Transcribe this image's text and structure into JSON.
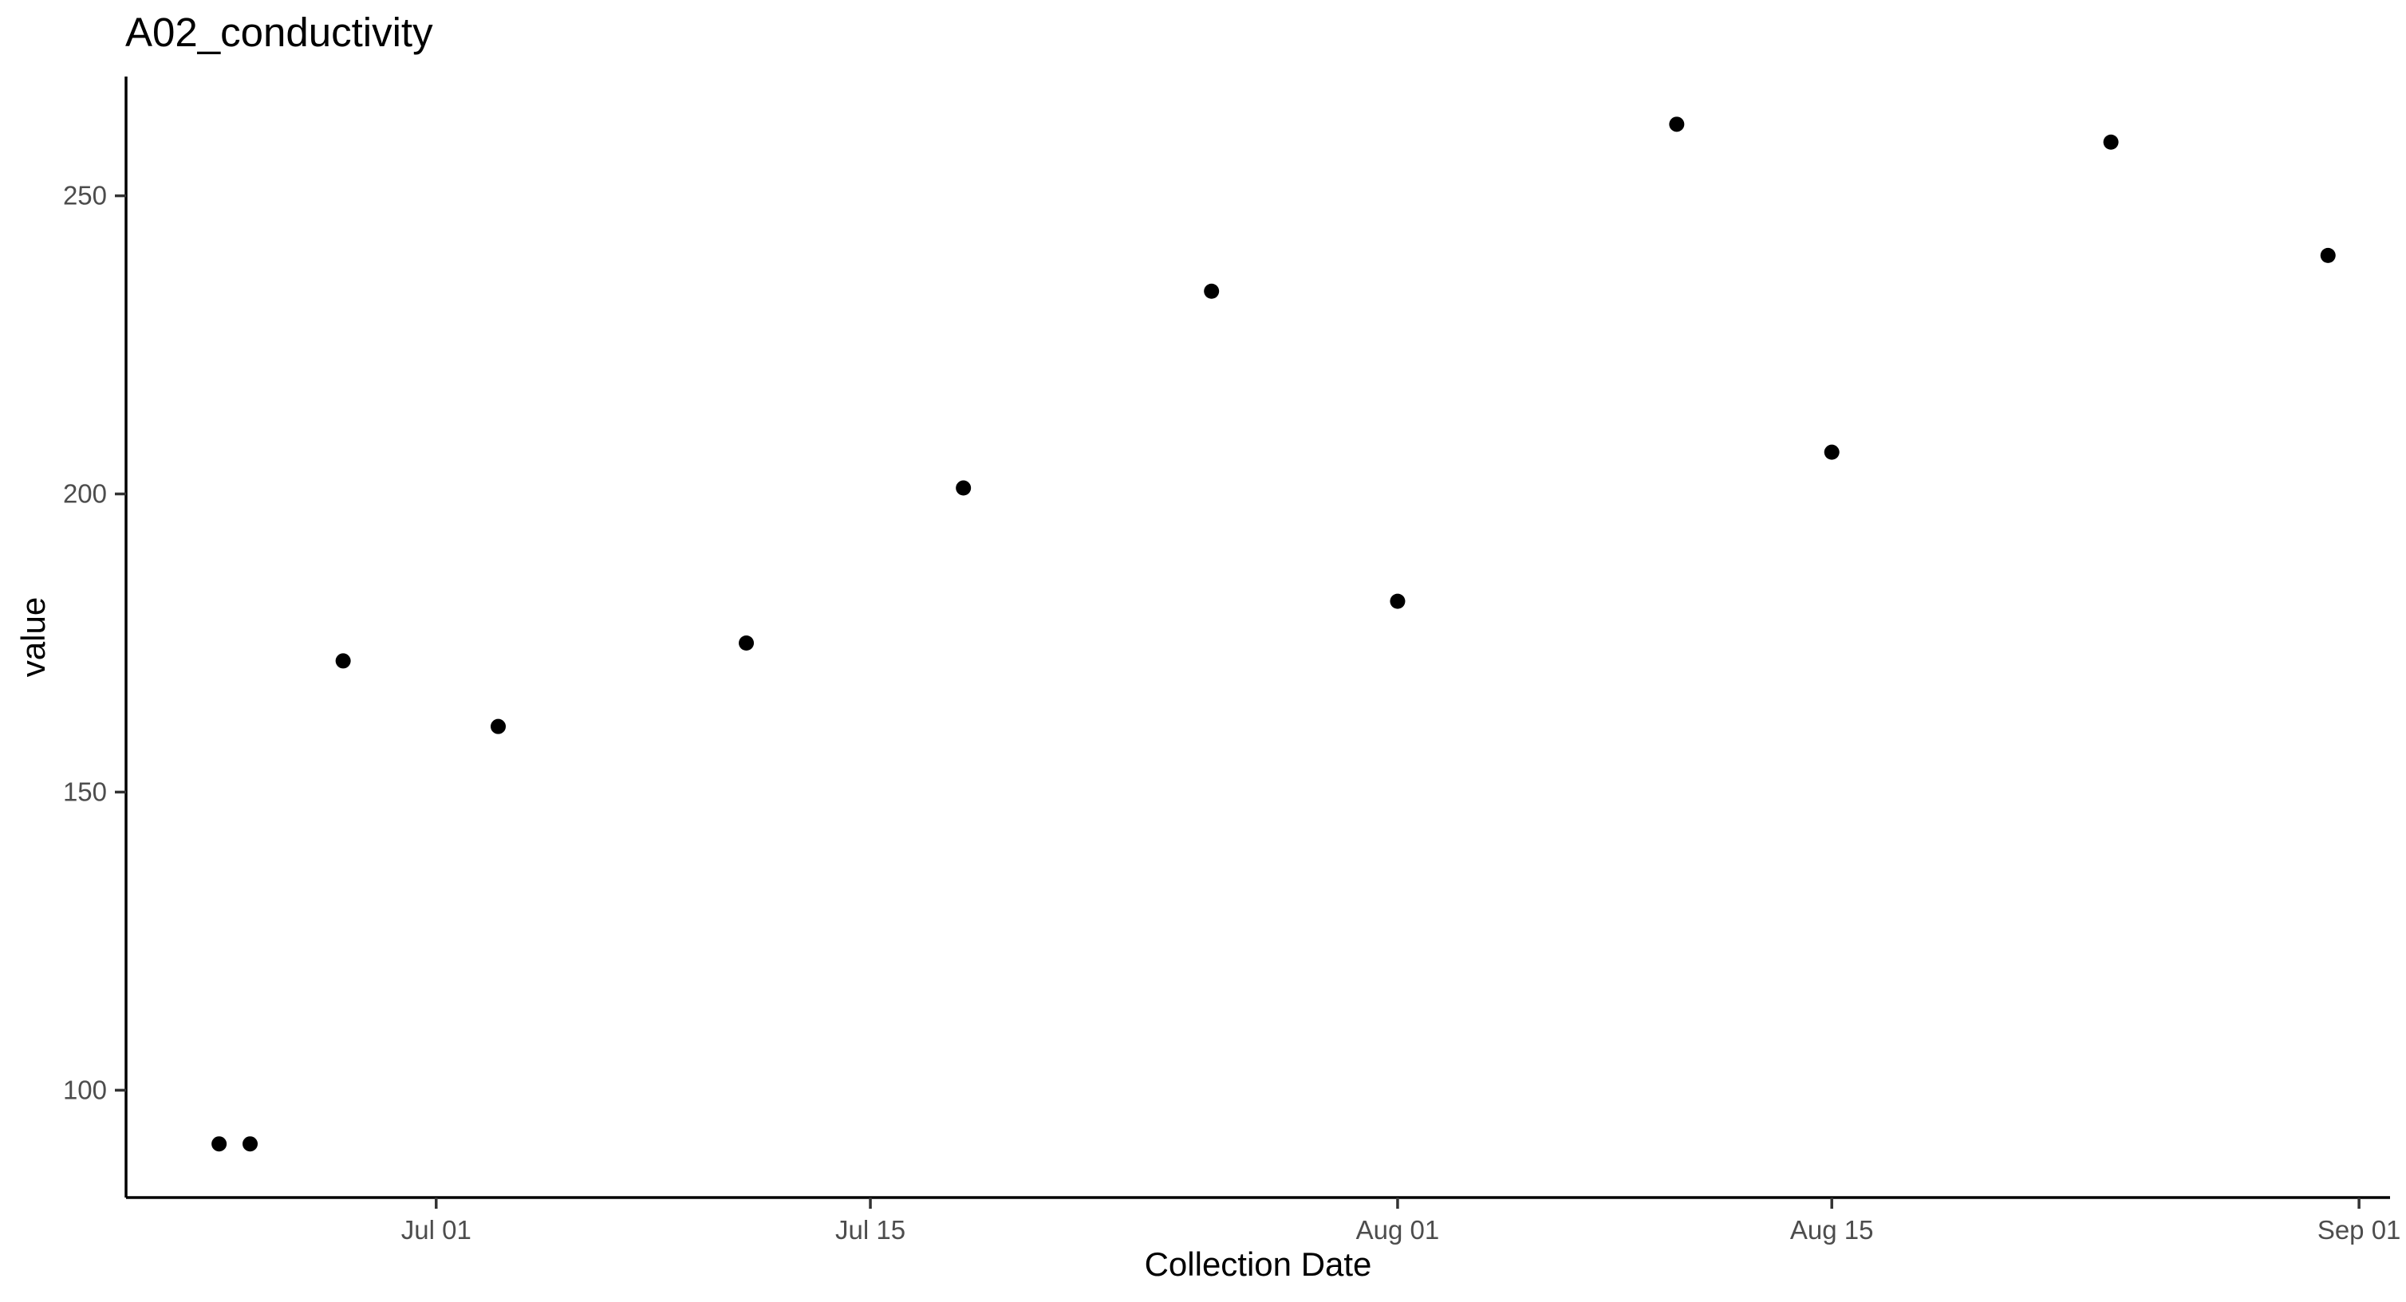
{
  "chart_data": {
    "type": "scatter",
    "title": "A02_conductivity",
    "xlabel": "Collection Date",
    "ylabel": "value",
    "x_type": "date",
    "xlim": [
      "2020-06-21",
      "2020-09-02"
    ],
    "ylim": [
      82,
      270
    ],
    "x_ticks": [
      {
        "value": "2020-07-01",
        "label": "Jul 01"
      },
      {
        "value": "2020-07-15",
        "label": "Jul 15"
      },
      {
        "value": "2020-08-01",
        "label": "Aug 01"
      },
      {
        "value": "2020-08-15",
        "label": "Aug 15"
      },
      {
        "value": "2020-09-01",
        "label": "Sep 01"
      }
    ],
    "y_ticks": [
      100,
      150,
      200,
      250
    ],
    "grid": false,
    "point_color": "#000000",
    "series": [
      {
        "points": [
          {
            "x": "2020-06-24",
            "y": 91
          },
          {
            "x": "2020-06-25",
            "y": 91
          },
          {
            "x": "2020-06-28",
            "y": 172
          },
          {
            "x": "2020-07-03",
            "y": 161
          },
          {
            "x": "2020-07-11",
            "y": 175
          },
          {
            "x": "2020-07-18",
            "y": 201
          },
          {
            "x": "2020-07-26",
            "y": 234
          },
          {
            "x": "2020-08-01",
            "y": 182
          },
          {
            "x": "2020-08-10",
            "y": 262
          },
          {
            "x": "2020-08-15",
            "y": 207
          },
          {
            "x": "2020-08-24",
            "y": 259
          },
          {
            "x": "2020-08-31",
            "y": 240
          }
        ]
      }
    ]
  }
}
